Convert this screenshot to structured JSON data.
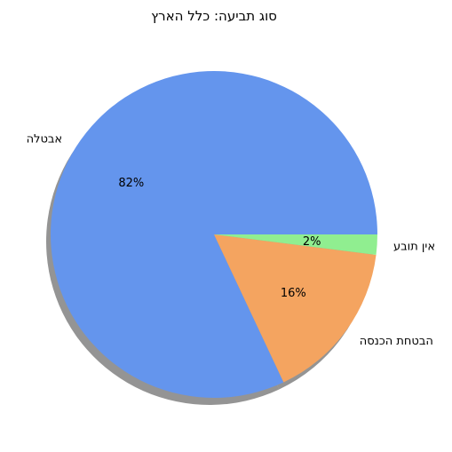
{
  "chart_data": {
    "type": "pie",
    "title": "סוג תביעה: כלל הארץ",
    "categories": [
      "אבטלה",
      "הבטחת הכנסה",
      "אין תובע"
    ],
    "values": [
      82,
      16,
      2
    ],
    "percent_labels": [
      "82%",
      "16%",
      "2%"
    ],
    "colors": [
      "#6495ED",
      "#F4A460",
      "#90EE90"
    ],
    "shadow": true,
    "start_angle_deg": 0,
    "direction": "counterclockwise"
  }
}
